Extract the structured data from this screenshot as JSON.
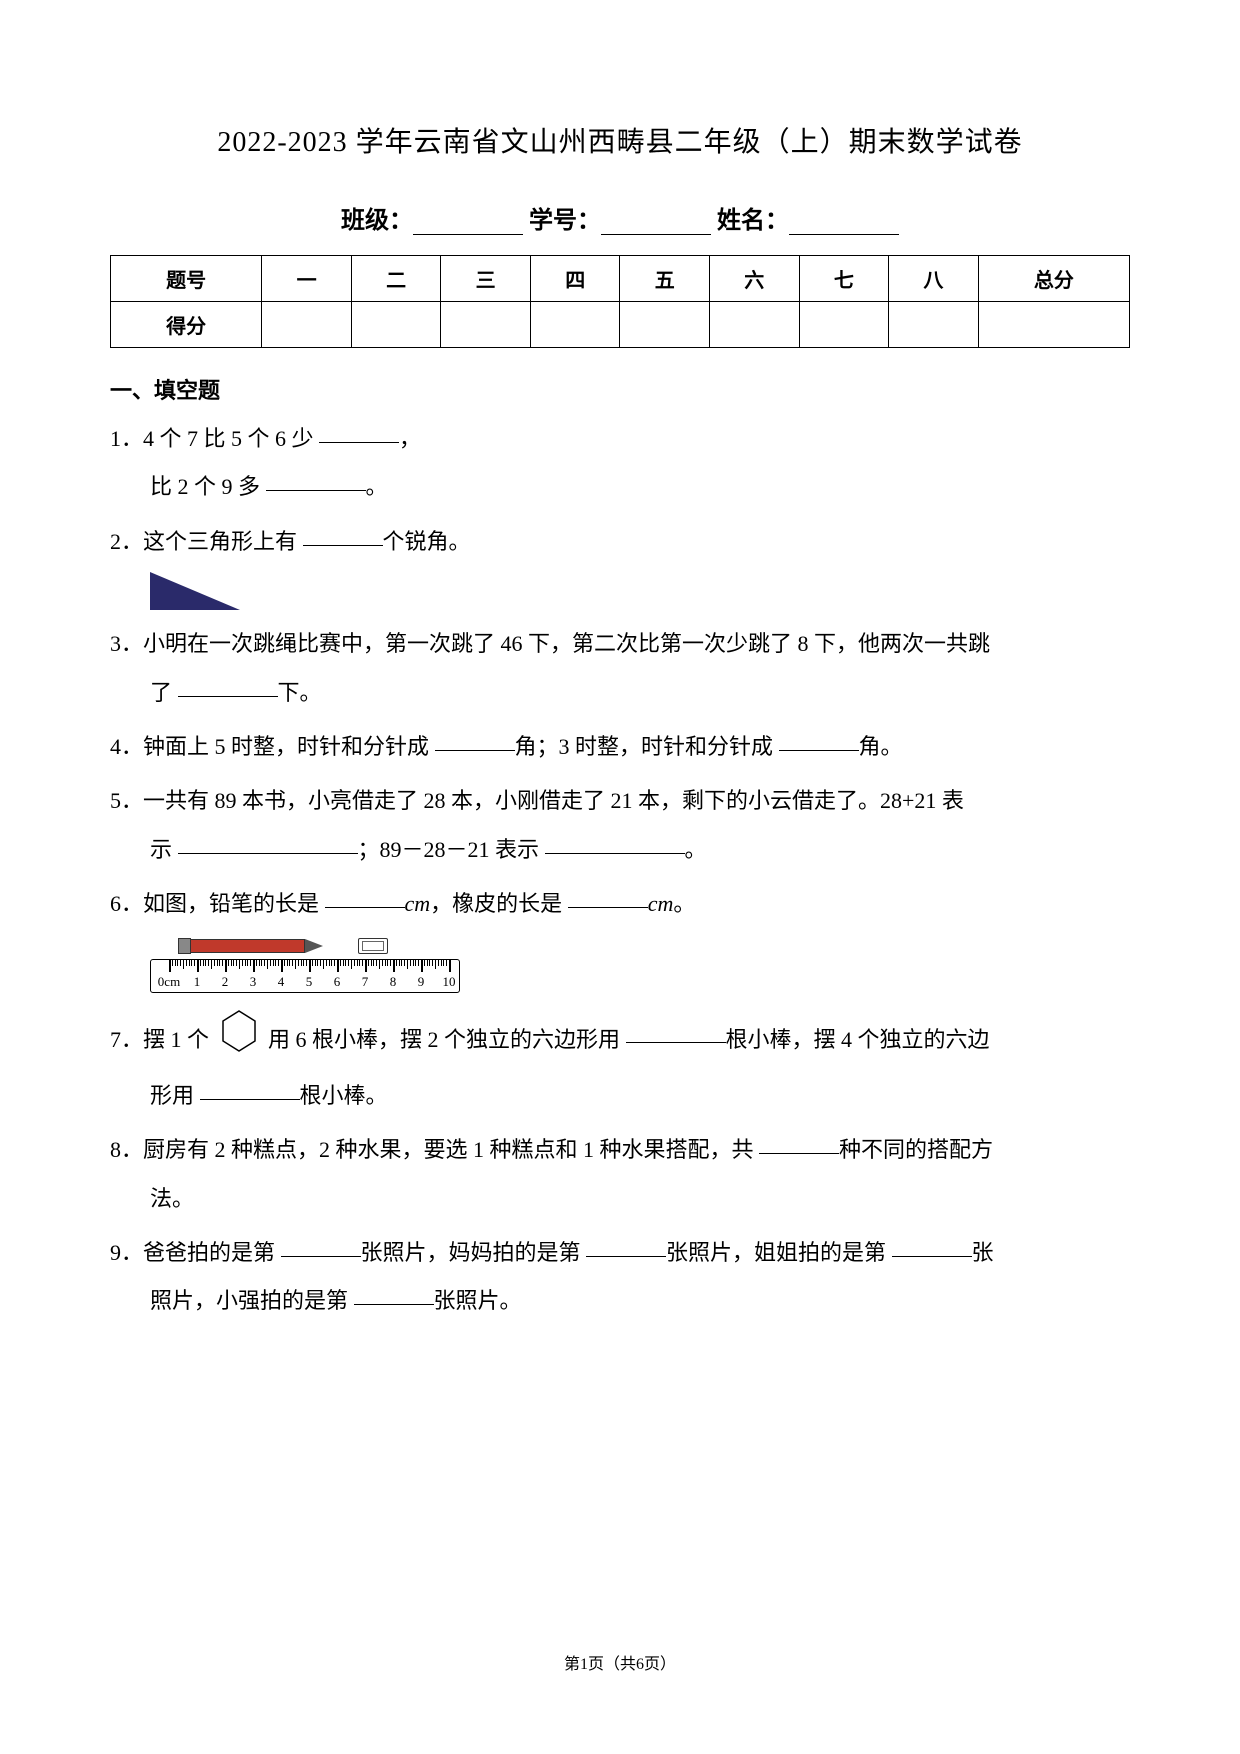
{
  "title": "2022-2023 学年云南省文山州西畴县二年级（上）期末数学试卷",
  "info": {
    "class_label": "班级：",
    "id_label": "学号：",
    "name_label": "姓名："
  },
  "score_table": {
    "headers": [
      "题号",
      "一",
      "二",
      "三",
      "四",
      "五",
      "六",
      "七",
      "八",
      "总分"
    ],
    "row_label": "得分"
  },
  "section1_title": "一、填空题",
  "q1": {
    "line1_a": "1．4 个 7 比 5 个 6 少 ",
    "line1_b": "，",
    "line2_a": "比 2 个 9 多 ",
    "line2_b": "。"
  },
  "q2": {
    "text_a": "2．这个三角形上有 ",
    "text_b": "个锐角。"
  },
  "q3": {
    "line1": "3．小明在一次跳绳比赛中，第一次跳了 46 下，第二次比第一次少跳了 8 下，他两次一共跳",
    "line2_a": "了 ",
    "line2_b": "下。"
  },
  "q4": {
    "text_a": "4．钟面上 5 时整，时针和分针成 ",
    "text_b": "角；3 时整，时针和分针成 ",
    "text_c": "角。"
  },
  "q5": {
    "line1": "5．一共有 89 本书，小亮借走了 28 本，小刚借走了 21 本，剩下的小云借走了。28+21 表",
    "line2_a": "示 ",
    "line2_b": "；89－28－21 表示 ",
    "line2_c": "。"
  },
  "q6": {
    "text_a": "6．如图，铅笔的长是 ",
    "text_b": "cm",
    "text_c": "，橡皮的长是 ",
    "text_d": "cm",
    "text_e": "。",
    "ruler": {
      "labels": [
        "0cm",
        "1",
        "2",
        "3",
        "4",
        "5",
        "6",
        "7",
        "8",
        "9",
        "10"
      ],
      "pencil_color": "#c0392b",
      "tick_color": "#000000"
    }
  },
  "q7": {
    "text_a": "7．摆 1 个",
    "text_b": "用 6 根小棒，摆 2 个独立的六边形用 ",
    "text_c": "根小棒，摆 4 个独立的六边",
    "line2_a": "形用 ",
    "line2_b": "根小棒。"
  },
  "q8": {
    "line1_a": "8．厨房有 2 种糕点，2 种水果，要选 1 种糕点和 1 种水果搭配，共 ",
    "line1_b": "种不同的搭配方",
    "line2": "法。"
  },
  "q9": {
    "line1_a": "9．爸爸拍的是第 ",
    "line1_b": "张照片，妈妈拍的是第 ",
    "line1_c": "张照片，姐姐拍的是第 ",
    "line1_d": "张",
    "line2_a": "照片，小强拍的是第 ",
    "line2_b": "张照片。"
  },
  "footer": "第1页（共6页）"
}
